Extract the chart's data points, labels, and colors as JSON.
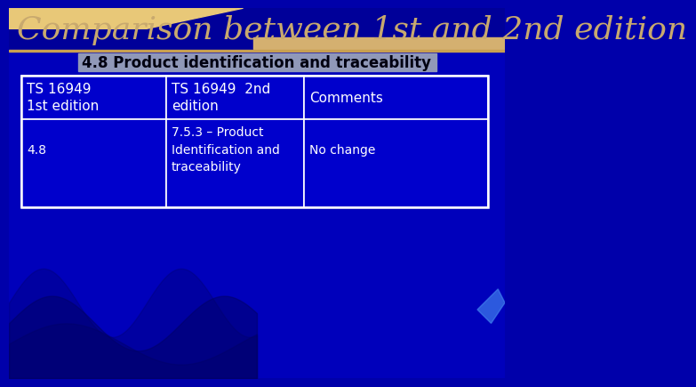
{
  "title": "Comparison between 1st and 2nd edition",
  "subtitle": "4.8 Product identification and traceability",
  "title_color": "#C8A96E",
  "subtitle_color": "#FFFFFF",
  "bg_color": "#0000AA",
  "table_headers": [
    "TS 16949\n1st edition",
    "TS 16949  2nd\nedition",
    "Comments"
  ],
  "table_row": [
    "4.8",
    "7.5.3 – Product\nIdentification and\ntraceability",
    "No change"
  ],
  "table_border_color": "#FFFFFF",
  "table_text_color": "#FFFFFF",
  "cell_bg_color": "#0000CC",
  "gold_bar_color": "#D4B483",
  "gold_line_color": "#C8A050",
  "dark_stripe_color": "#000066"
}
